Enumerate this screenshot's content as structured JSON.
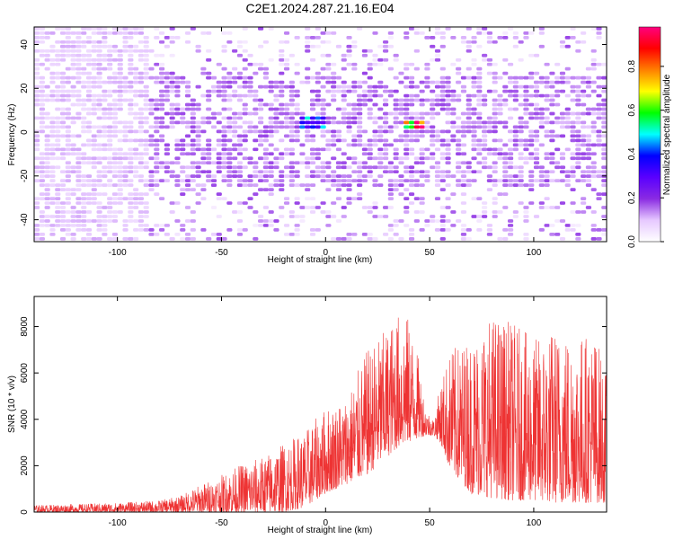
{
  "title": "C2E1.2024.287.21.16.E04",
  "chart_data": [
    {
      "type": "heatmap",
      "xlabel": "Height of straight line (km)",
      "ylabel": "Frequency (Hz)",
      "xlim": [
        -140,
        135
      ],
      "ylim": [
        -50,
        48
      ],
      "xticks": [
        -100,
        -50,
        0,
        50,
        100
      ],
      "yticks": [
        -40,
        -20,
        0,
        20,
        40
      ],
      "grid": false,
      "colorbar": {
        "label": "Normalized spectral amplitude",
        "range": [
          0,
          0.98
        ],
        "ticks": [
          "0.0",
          "0.2",
          "0.4",
          "0.6",
          "0.8"
        ],
        "colormap": [
          "#ffffff",
          "#e6c8ff",
          "#8a2be2",
          "#5a00ff",
          "#0000ff",
          "#00ffff",
          "#00ff00",
          "#ffff00",
          "#ff7f00",
          "#ff0000",
          "#ff007f"
        ]
      },
      "notable_features": [
        {
          "x_range": [
            -140,
            -85
          ],
          "freq_range": [
            -50,
            48
          ],
          "amplitude": 0.1
        },
        {
          "x_range": [
            -12,
            0
          ],
          "freq_range": [
            2,
            8
          ],
          "amplitude": 0.45
        },
        {
          "x_range": [
            38,
            48
          ],
          "freq_range": [
            2,
            6
          ],
          "amplitude": 0.9
        },
        {
          "x_range": [
            -85,
            135
          ],
          "freq_range": [
            -30,
            30
          ],
          "amplitude": 0.15
        }
      ]
    },
    {
      "type": "line",
      "xlabel": "Height of straight line (km)",
      "ylabel": "SNR (10 * v/v)",
      "xlim": [
        -140,
        135
      ],
      "ylim": [
        0,
        9300
      ],
      "xticks": [
        -100,
        -50,
        0,
        50,
        100
      ],
      "yticks": [
        0,
        2000,
        4000,
        6000,
        8000
      ],
      "grid": false,
      "series": [
        {
          "color": "#ee3333",
          "envelope_x": [
            -140,
            -100,
            -80,
            -70,
            -60,
            -50,
            -40,
            -30,
            -20,
            -10,
            0,
            10,
            20,
            30,
            35,
            40,
            45,
            48,
            52,
            55,
            60,
            70,
            80,
            90,
            100,
            110,
            120,
            130,
            135
          ],
          "envelope_y": [
            300,
            400,
            500,
            700,
            1200,
            1600,
            2100,
            2400,
            3000,
            3500,
            4500,
            5000,
            7000,
            8000,
            8600,
            8400,
            6500,
            4500,
            4000,
            5500,
            7000,
            7600,
            8600,
            8200,
            7500,
            8000,
            7800,
            7700,
            6000
          ],
          "floor_y": [
            0,
            0,
            0,
            0,
            0,
            0,
            0,
            0,
            0,
            200,
            800,
            1200,
            1600,
            2400,
            2800,
            3000,
            3200,
            3300,
            3300,
            3000,
            1800,
            800,
            600,
            500,
            500,
            400,
            400,
            400,
            400
          ]
        }
      ]
    }
  ]
}
